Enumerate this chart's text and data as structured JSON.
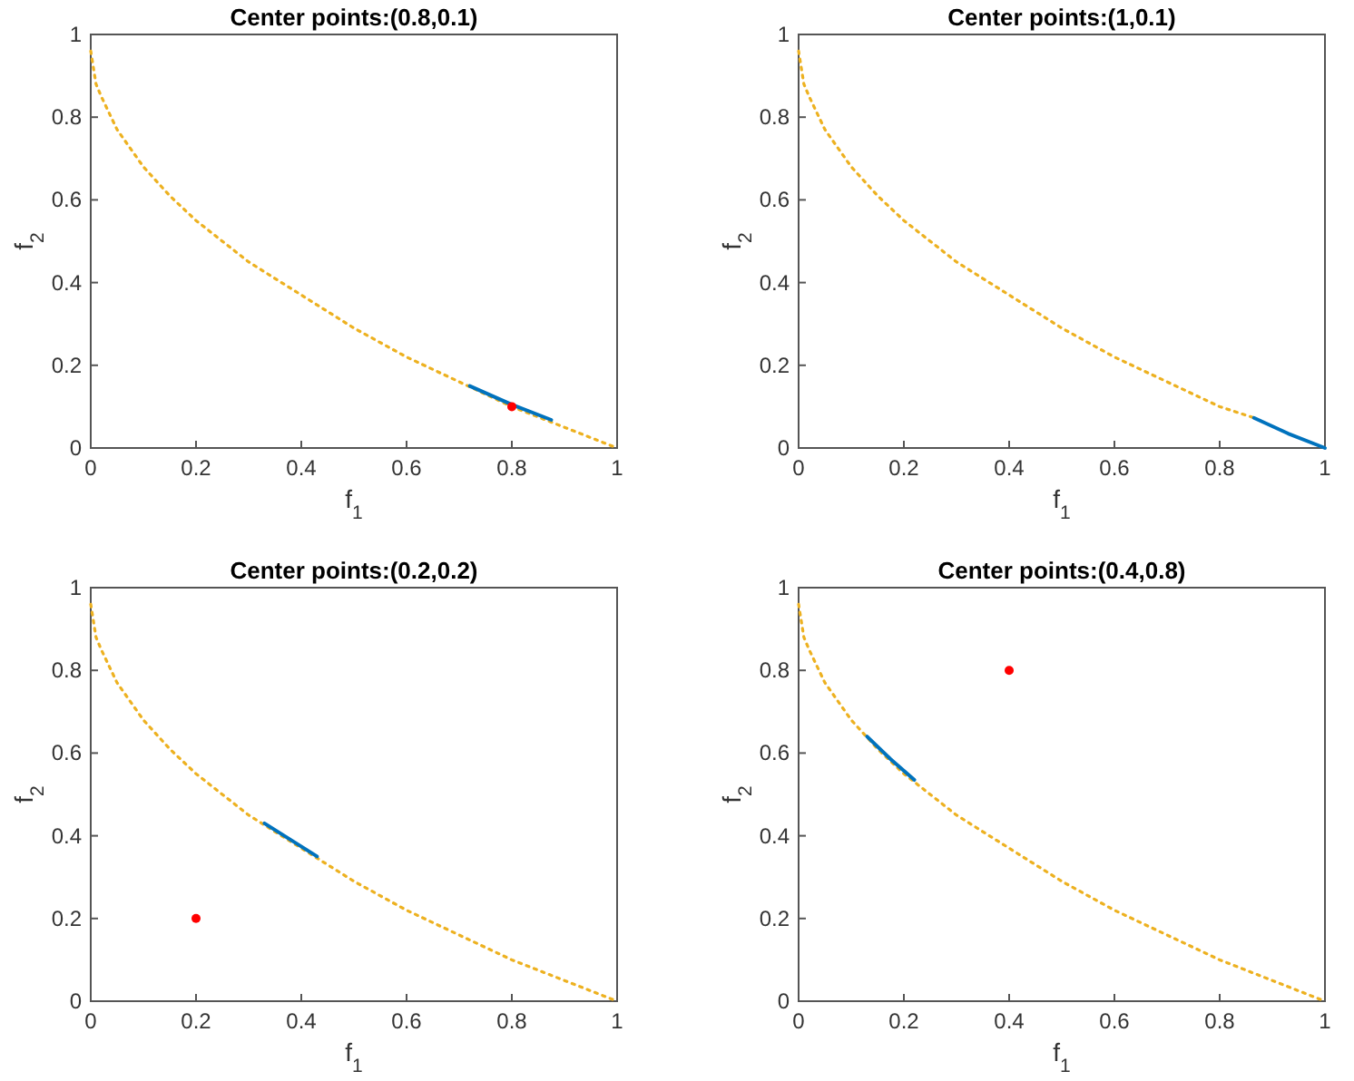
{
  "chart_data": [
    {
      "type": "line",
      "title": "Center points:(0.8,0.1)",
      "xlabel": "f$_{1}$",
      "ylabel": "f$_{2}$",
      "xlim": [
        0,
        1
      ],
      "ylim": [
        0,
        1
      ],
      "xticks": [
        0,
        0.2,
        0.4,
        0.6,
        0.8,
        1
      ],
      "yticks": [
        0,
        0.2,
        0.4,
        0.6,
        0.8,
        1
      ],
      "grid": false,
      "series": [
        {
          "color": "#edb120",
          "line_style": "dotted",
          "marker": "none",
          "x": [
            0,
            0.01,
            0.02,
            0.05,
            0.1,
            0.15,
            0.2,
            0.3,
            0.4,
            0.5,
            0.6,
            0.7,
            0.8,
            0.9,
            1
          ],
          "values": [
            0.96,
            0.88,
            0.85,
            0.77,
            0.68,
            0.61,
            0.55,
            0.45,
            0.37,
            0.29,
            0.22,
            0.16,
            0.1,
            0.05,
            0
          ]
        },
        {
          "color": "#0072bd",
          "line_style": "solid",
          "marker": "none",
          "x": [
            0.72,
            0.8,
            0.875
          ],
          "values": [
            0.15,
            0.105,
            0.068
          ]
        },
        {
          "type": "scatter",
          "color": "#ff0000",
          "marker": "circle",
          "x": [
            0.8
          ],
          "values": [
            0.1
          ]
        }
      ]
    },
    {
      "type": "line",
      "title": "Center points:(1,0.1)",
      "xlabel": "f$_{1}$",
      "ylabel": "f$_{2}$",
      "xlim": [
        0,
        1
      ],
      "ylim": [
        0,
        1
      ],
      "xticks": [
        0,
        0.2,
        0.4,
        0.6,
        0.8,
        1
      ],
      "yticks": [
        0,
        0.2,
        0.4,
        0.6,
        0.8,
        1
      ],
      "grid": false,
      "series": [
        {
          "color": "#edb120",
          "line_style": "dotted",
          "marker": "none",
          "x": [
            0,
            0.01,
            0.02,
            0.05,
            0.1,
            0.15,
            0.2,
            0.3,
            0.4,
            0.5,
            0.6,
            0.7,
            0.8,
            0.865
          ],
          "values": [
            0.96,
            0.88,
            0.85,
            0.77,
            0.68,
            0.61,
            0.55,
            0.45,
            0.37,
            0.29,
            0.22,
            0.16,
            0.1,
            0.073
          ]
        },
        {
          "color": "#0072bd",
          "line_style": "solid",
          "marker": "none",
          "x": [
            0.865,
            0.93,
            1
          ],
          "values": [
            0.073,
            0.035,
            0
          ]
        }
      ]
    },
    {
      "type": "line",
      "title": "Center points:(0.2,0.2)",
      "xlabel": "f$_{1}$",
      "ylabel": "f$_{2}$",
      "xlim": [
        0,
        1
      ],
      "ylim": [
        0,
        1
      ],
      "xticks": [
        0,
        0.2,
        0.4,
        0.6,
        0.8,
        1
      ],
      "yticks": [
        0,
        0.2,
        0.4,
        0.6,
        0.8,
        1
      ],
      "grid": false,
      "series": [
        {
          "color": "#edb120",
          "line_style": "dotted",
          "marker": "none",
          "x": [
            0,
            0.01,
            0.02,
            0.05,
            0.1,
            0.15,
            0.2,
            0.3,
            0.4,
            0.5,
            0.6,
            0.7,
            0.8,
            0.9,
            1
          ],
          "values": [
            0.96,
            0.88,
            0.85,
            0.77,
            0.68,
            0.61,
            0.55,
            0.45,
            0.37,
            0.29,
            0.22,
            0.16,
            0.1,
            0.05,
            0
          ]
        },
        {
          "color": "#0072bd",
          "line_style": "solid",
          "marker": "none",
          "x": [
            0.33,
            0.38,
            0.43
          ],
          "values": [
            0.43,
            0.39,
            0.35
          ]
        },
        {
          "type": "scatter",
          "color": "#ff0000",
          "marker": "circle",
          "x": [
            0.2
          ],
          "values": [
            0.2
          ]
        }
      ]
    },
    {
      "type": "line",
      "title": "Center points:(0.4,0.8)",
      "xlabel": "f$_{1}$",
      "ylabel": "f$_{2}$",
      "xlim": [
        0,
        1
      ],
      "ylim": [
        0,
        1
      ],
      "xticks": [
        0,
        0.2,
        0.4,
        0.6,
        0.8,
        1
      ],
      "yticks": [
        0,
        0.2,
        0.4,
        0.6,
        0.8,
        1
      ],
      "grid": false,
      "series": [
        {
          "color": "#edb120",
          "line_style": "dotted",
          "marker": "none",
          "x": [
            0,
            0.01,
            0.02,
            0.05,
            0.1,
            0.15,
            0.2,
            0.3,
            0.4,
            0.5,
            0.6,
            0.7,
            0.8,
            0.9,
            1
          ],
          "values": [
            0.96,
            0.88,
            0.85,
            0.77,
            0.68,
            0.61,
            0.55,
            0.45,
            0.37,
            0.29,
            0.22,
            0.16,
            0.1,
            0.05,
            0
          ]
        },
        {
          "color": "#0072bd",
          "line_style": "solid",
          "marker": "none",
          "x": [
            0.13,
            0.175,
            0.22
          ],
          "values": [
            0.64,
            0.585,
            0.535
          ]
        },
        {
          "type": "scatter",
          "color": "#ff0000",
          "marker": "circle",
          "x": [
            0.4
          ],
          "values": [
            0.8
          ]
        }
      ]
    }
  ]
}
